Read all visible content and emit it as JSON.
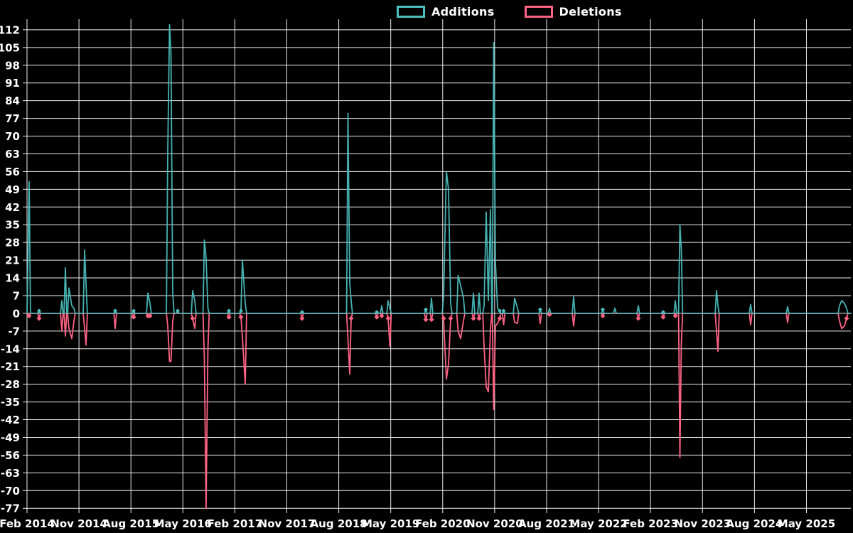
{
  "legend": {
    "additions_label": "Additions",
    "deletions_label": "Deletions"
  },
  "colors": {
    "background": "#000000",
    "grid": "#ffffff",
    "text": "#ffffff",
    "additions": "#4bc0c0",
    "deletions": "#ff6384"
  },
  "chart_data": {
    "type": "line",
    "title": "",
    "legend_position": "top",
    "grid": true,
    "x_unit": "months since Feb 2014 (weekly samples)",
    "xlim_months": [
      0,
      142.8
    ],
    "ylim": [
      -77,
      114.8
    ],
    "y_ticks": [
      112,
      105,
      98,
      91,
      84,
      77,
      70,
      63,
      56,
      49,
      42,
      35,
      28,
      21,
      14,
      7,
      0,
      -7,
      -14,
      -21,
      -28,
      -35,
      -42,
      -49,
      -56,
      -63,
      -70,
      -77
    ],
    "x_ticks": [
      {
        "m": 0,
        "label": "Feb 2014"
      },
      {
        "m": 9,
        "label": "Nov 2014"
      },
      {
        "m": 18,
        "label": "Aug 2015"
      },
      {
        "m": 27,
        "label": "May 2016"
      },
      {
        "m": 36,
        "label": "Feb 2017"
      },
      {
        "m": 45,
        "label": "Nov 2017"
      },
      {
        "m": 54,
        "label": "Aug 2018"
      },
      {
        "m": 63,
        "label": "May 2019"
      },
      {
        "m": 72,
        "label": "Feb 2020"
      },
      {
        "m": 81,
        "label": "Nov 2020"
      },
      {
        "m": 90,
        "label": "Aug 2021"
      },
      {
        "m": 99,
        "label": "May 2022"
      },
      {
        "m": 108,
        "label": "Feb 2023"
      },
      {
        "m": 117,
        "label": "Nov 2023"
      },
      {
        "m": 126,
        "label": "Aug 2024"
      },
      {
        "m": 135,
        "label": "May 2025"
      }
    ],
    "series": [
      {
        "name": "Additions",
        "color": "#4bc0c0"
      },
      {
        "name": "Deletions",
        "color": "#ff6384"
      }
    ],
    "spikes": [
      {
        "m": 0.37,
        "add": 52,
        "del": -1
      },
      {
        "m": 2.09,
        "add": 1,
        "del": -2
      },
      {
        "m": 6.03,
        "add": 5,
        "del": -7
      },
      {
        "m": 6.65,
        "add": 18,
        "del": -9
      },
      {
        "m": 7.26,
        "add": 10,
        "del": -6
      },
      {
        "m": 7.76,
        "add": 3,
        "del": -10
      },
      {
        "m": 8.13,
        "add": 2,
        "del": -3
      },
      {
        "m": 9.97,
        "add": 25,
        "del": -6
      },
      {
        "m": 10.22,
        "add": 12,
        "del": -12.5
      },
      {
        "m": 15.27,
        "add": 1,
        "del": -6
      },
      {
        "m": 18.47,
        "add": 1,
        "del": -1.5
      },
      {
        "m": 20.93,
        "add": 8,
        "del": -1
      },
      {
        "m": 21.3,
        "add": 4,
        "del": -1
      },
      {
        "m": 24.38,
        "add": 64,
        "del": -5
      },
      {
        "m": 24.68,
        "add": 114,
        "del": -19
      },
      {
        "m": 24.93,
        "add": 103,
        "del": -19
      },
      {
        "m": 25.24,
        "add": 8,
        "del": -3
      },
      {
        "m": 26.1,
        "add": 1,
        "del": 0
      },
      {
        "m": 28.69,
        "add": 9,
        "del": -2
      },
      {
        "m": 29.06,
        "add": 5,
        "del": -6
      },
      {
        "m": 30.72,
        "add": 29,
        "del": -18
      },
      {
        "m": 31.02,
        "add": 22,
        "del": -77
      },
      {
        "m": 31.33,
        "add": 2,
        "del": -14
      },
      {
        "m": 34.97,
        "add": 1,
        "del": -1.5
      },
      {
        "m": 37.06,
        "add": 1,
        "del": -1.5
      },
      {
        "m": 37.3,
        "add": 21,
        "del": -9.5
      },
      {
        "m": 37.8,
        "add": 4,
        "del": -28
      },
      {
        "m": 47.65,
        "add": 0.5,
        "del": -2
      },
      {
        "m": 55.59,
        "add": 79,
        "del": -10
      },
      {
        "m": 55.9,
        "add": 12,
        "del": -24
      },
      {
        "m": 56.14,
        "add": 5,
        "del": -2
      },
      {
        "m": 60.58,
        "add": 0.5,
        "del": -1.5
      },
      {
        "m": 61.44,
        "add": 3,
        "del": -1
      },
      {
        "m": 62.55,
        "add": 5,
        "del": -2
      },
      {
        "m": 62.86,
        "add": 2,
        "del": -13
      },
      {
        "m": 69.07,
        "add": 1.5,
        "del": -2.5
      },
      {
        "m": 70.06,
        "add": 6,
        "del": -2.5
      },
      {
        "m": 72.15,
        "add": 6,
        "del": -2
      },
      {
        "m": 72.64,
        "add": 56,
        "del": -26
      },
      {
        "m": 73.01,
        "add": 49,
        "del": -20
      },
      {
        "m": 73.38,
        "add": 4,
        "del": -2
      },
      {
        "m": 74.67,
        "add": 15,
        "del": -7
      },
      {
        "m": 75.1,
        "add": 11,
        "del": -10
      },
      {
        "m": 75.6,
        "add": 6,
        "del": -3
      },
      {
        "m": 77.32,
        "add": 8,
        "del": -2
      },
      {
        "m": 78.3,
        "add": 8,
        "del": -2
      },
      {
        "m": 79.17,
        "add": 3,
        "del": -13
      },
      {
        "m": 79.54,
        "add": 40,
        "del": -29
      },
      {
        "m": 79.91,
        "add": 5,
        "del": -31
      },
      {
        "m": 80.28,
        "add": 41,
        "del": -6
      },
      {
        "m": 80.83,
        "add": 107,
        "del": -38
      },
      {
        "m": 81.14,
        "add": 20,
        "del": -5
      },
      {
        "m": 81.51,
        "add": 2,
        "del": -4
      },
      {
        "m": 81.88,
        "add": 1,
        "del": -2
      },
      {
        "m": 82.55,
        "add": 1,
        "del": -4.5
      },
      {
        "m": 84.46,
        "add": 6,
        "del": -3.5
      },
      {
        "m": 84.95,
        "add": 2,
        "del": -4
      },
      {
        "m": 88.89,
        "add": 1.5,
        "del": -4
      },
      {
        "m": 90.49,
        "add": 2,
        "del": -0.5
      },
      {
        "m": 94.68,
        "add": 6.5,
        "del": -5
      },
      {
        "m": 99.73,
        "add": 1.5,
        "del": -1
      },
      {
        "m": 101.82,
        "add": 2,
        "del": 0
      },
      {
        "m": 105.88,
        "add": 3,
        "del": -2
      },
      {
        "m": 110.19,
        "add": 0.5,
        "del": -1.5
      },
      {
        "m": 112.29,
        "add": 5,
        "del": -1
      },
      {
        "m": 113.09,
        "add": 35,
        "del": -57
      },
      {
        "m": 113.33,
        "add": 25,
        "del": -12
      },
      {
        "m": 119.43,
        "add": 9,
        "del": -7
      },
      {
        "m": 119.67,
        "add": 3,
        "del": -15
      },
      {
        "m": 125.34,
        "add": 3.5,
        "del": -4.5
      },
      {
        "m": 131.74,
        "add": 2.6,
        "del": -3.7
      },
      {
        "m": 140.73,
        "add": 3,
        "del": -3
      },
      {
        "m": 141.1,
        "add": 5,
        "del": -6
      },
      {
        "m": 141.59,
        "add": 4,
        "del": -5
      },
      {
        "m": 141.96,
        "add": 2,
        "del": -2
      }
    ]
  }
}
